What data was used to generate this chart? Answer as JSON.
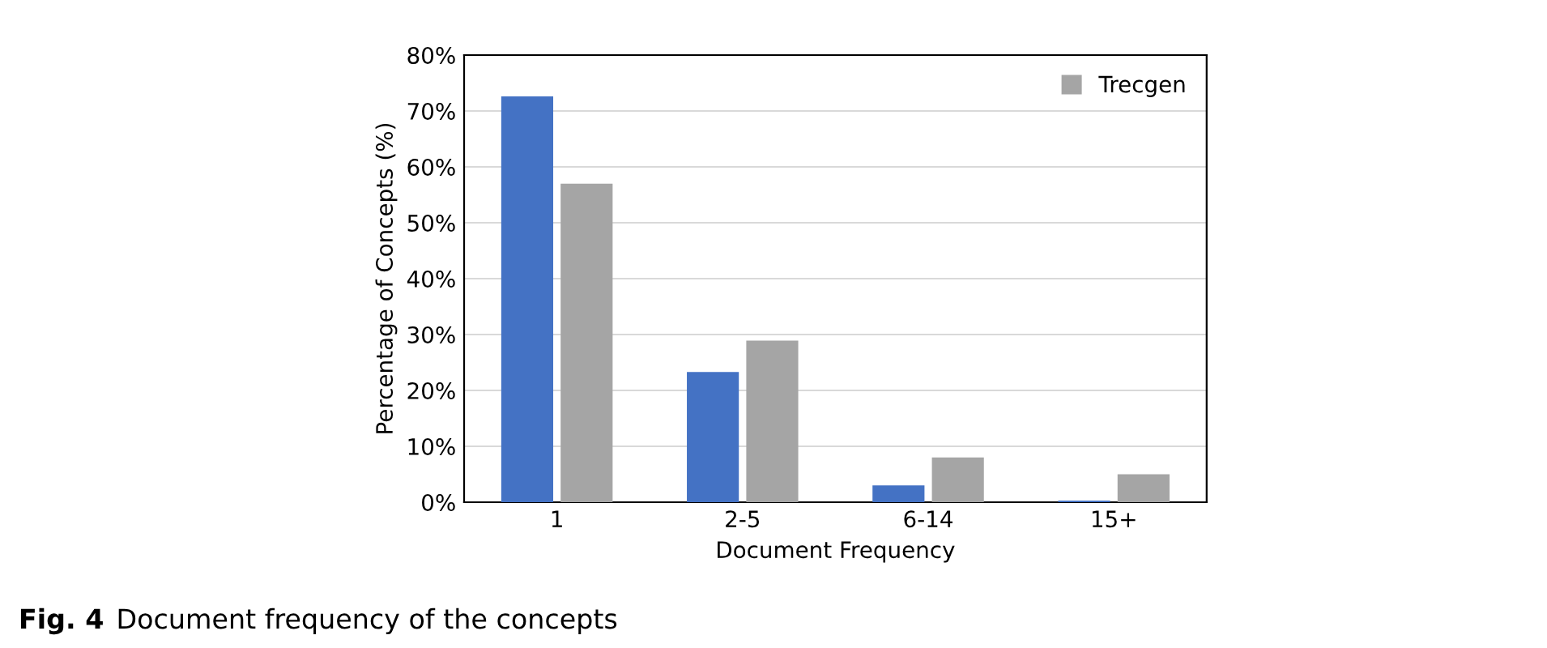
{
  "chart_data": {
    "type": "bar",
    "categories": [
      "1",
      "2-5",
      "6-14",
      "15+"
    ],
    "series": [
      {
        "color": "#4472c4",
        "values": [
          72.6,
          23.3,
          3.0,
          0.3
        ]
      },
      {
        "name": "Trecgen",
        "color": "#a5a5a5",
        "values": [
          57.0,
          28.9,
          8.0,
          5.0
        ]
      }
    ],
    "xlabel": "Document Frequency",
    "ylabel": "Percentage of Concepts (%)",
    "ylim": [
      0,
      80
    ],
    "yticks": [
      {
        "value": 0,
        "label": "0%"
      },
      {
        "value": 10,
        "label": "10%"
      },
      {
        "value": 20,
        "label": "20%"
      },
      {
        "value": 30,
        "label": "30%"
      },
      {
        "value": 40,
        "label": "40%"
      },
      {
        "value": 50,
        "label": "50%"
      },
      {
        "value": 60,
        "label": "60%"
      },
      {
        "value": 70,
        "label": "70%"
      },
      {
        "value": 80,
        "label": "80%"
      }
    ],
    "grid": "y",
    "legend": "top right",
    "annotations": [
      "Fig. 4",
      "Document frequency of the concepts"
    ]
  }
}
